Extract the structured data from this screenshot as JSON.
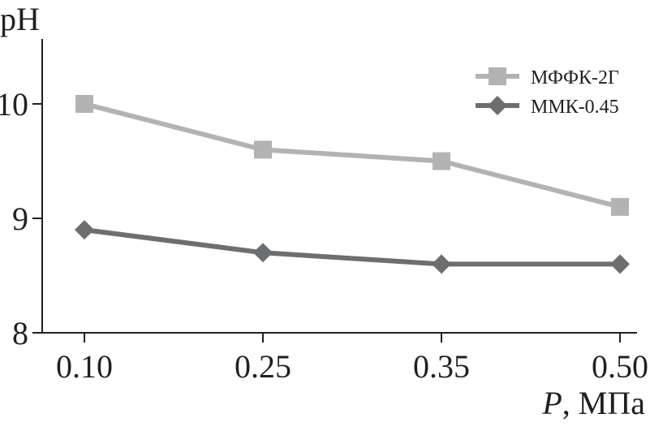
{
  "chart_data": {
    "type": "line",
    "title": "",
    "xlabel_italic": "P",
    "xlabel_unit": ", МПа",
    "ylabel": "pH",
    "categories": [
      "0.10",
      "0.25",
      "0.35",
      "0.50"
    ],
    "ylim": [
      8,
      10.6
    ],
    "yticks": [
      8,
      9,
      10
    ],
    "ytick_labels": [
      "8",
      "9",
      "10"
    ],
    "grid": false,
    "legend_position": "top-right",
    "series": [
      {
        "name": "МФФК-2Г",
        "values": [
          10.0,
          9.6,
          9.5,
          9.1
        ],
        "color": "#b3b3b3",
        "marker": "square"
      },
      {
        "name": "ММК-0.45",
        "values": [
          8.9,
          8.7,
          8.6,
          8.6
        ],
        "color": "#6d6e70",
        "marker": "diamond"
      }
    ]
  }
}
